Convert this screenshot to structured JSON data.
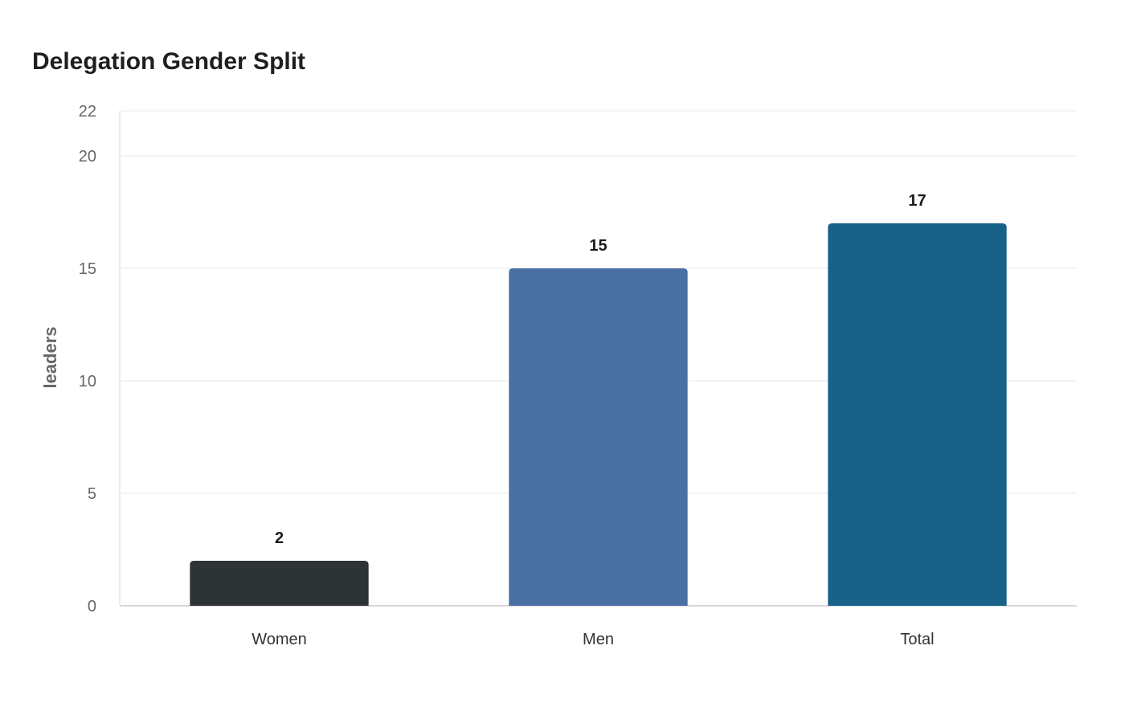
{
  "chart_data": {
    "type": "bar",
    "title": "Delegation Gender Split",
    "ylabel": "leaders",
    "xlabel": "",
    "categories": [
      "Women",
      "Men",
      "Total"
    ],
    "values": [
      2,
      15,
      17
    ],
    "ylim": [
      0,
      22
    ],
    "yticks": [
      0,
      5,
      10,
      15,
      20,
      22
    ],
    "colors": [
      "#2e3336",
      "#4a6fa3",
      "#186189"
    ],
    "grid": true,
    "legend": "none"
  }
}
